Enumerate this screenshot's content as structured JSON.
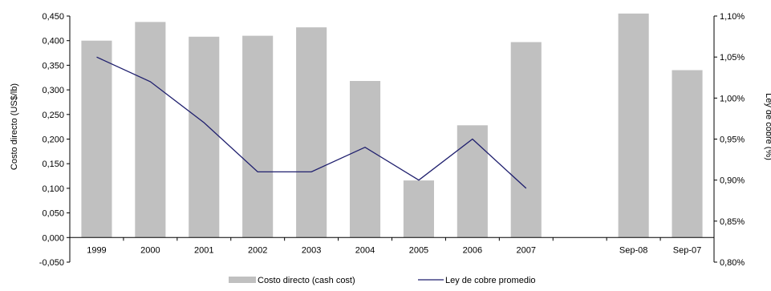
{
  "chart_data": {
    "type": "bar",
    "title": "",
    "categories": [
      "1999",
      "2000",
      "2001",
      "2002",
      "2003",
      "2004",
      "2005",
      "2006",
      "2007",
      "",
      "Sep-08",
      "Sep-07"
    ],
    "series": [
      {
        "name": "Costo directo (cash cost)",
        "type": "bar",
        "axis": "left",
        "color": "#c0c0c0",
        "values": [
          0.4,
          0.438,
          0.408,
          0.41,
          0.427,
          0.318,
          0.116,
          0.228,
          0.397,
          null,
          0.455,
          0.34
        ]
      },
      {
        "name": "Ley de cobre promedio",
        "type": "line",
        "axis": "right",
        "color": "#1f1f6e",
        "values": [
          1.05,
          1.02,
          0.97,
          0.91,
          0.91,
          0.94,
          0.9,
          0.95,
          0.89,
          null,
          null,
          null
        ]
      }
    ],
    "y_left": {
      "label": "Costo directo (US$/lb)",
      "min": -0.05,
      "max": 0.45,
      "ticks": [
        "-0,050",
        "0,000",
        "0,050",
        "0,100",
        "0,150",
        "0,200",
        "0,250",
        "0,300",
        "0,350",
        "0,400",
        "0,450"
      ]
    },
    "y_right": {
      "label": "Ley de cobre (%)",
      "min": 0.8,
      "max": 1.1,
      "ticks": [
        "0,80%",
        "0,85%",
        "0,90%",
        "0,95%",
        "1,00%",
        "1,05%",
        "1,10%"
      ]
    },
    "grid": false,
    "legend_position": "bottom"
  }
}
